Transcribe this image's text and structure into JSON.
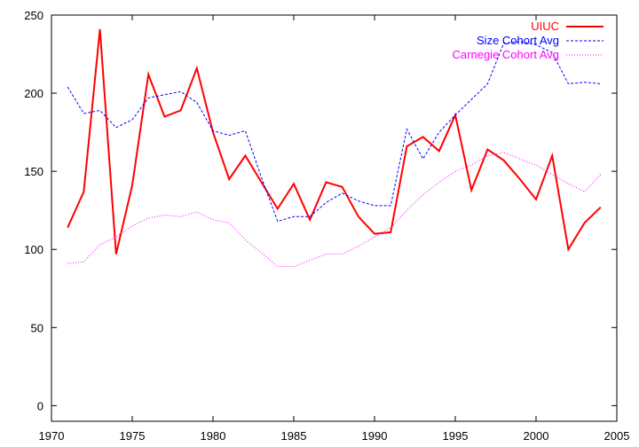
{
  "chart_data": {
    "type": "line",
    "title": "",
    "xlabel": "",
    "ylabel": "",
    "xlim": [
      1970,
      2005
    ],
    "ylim": [
      -10,
      250
    ],
    "xticks": [
      1970,
      1975,
      1980,
      1985,
      1990,
      1995,
      2000,
      2005
    ],
    "yticks": [
      0,
      50,
      100,
      150,
      200,
      250
    ],
    "xtick_labels": [
      "1970",
      "1975",
      "1980",
      "1985",
      "1990",
      "1995",
      "2000",
      "2005"
    ],
    "ytick_labels": [
      "0",
      "50",
      "100",
      "150",
      "200",
      "250"
    ],
    "grid": false,
    "legend_position": "top-right",
    "series": [
      {
        "name": "UIUC",
        "color": "#ff0000",
        "style": "solid",
        "x": [
          1971,
          1972,
          1973,
          1974,
          1975,
          1976,
          1977,
          1978,
          1979,
          1980,
          1981,
          1982,
          1983,
          1984,
          1985,
          1986,
          1987,
          1988,
          1989,
          1990,
          1991,
          1992,
          1993,
          1994,
          1995,
          1996,
          1997,
          1998,
          1999,
          2000,
          2001,
          2002,
          2003,
          2004
        ],
        "values": [
          114,
          137,
          241,
          97,
          141,
          212,
          185,
          189,
          216,
          175,
          145,
          160,
          143,
          126,
          142,
          119,
          143,
          140,
          121,
          110,
          111,
          166,
          172,
          163,
          186,
          138,
          164,
          157,
          145,
          132,
          160,
          100,
          117,
          127
        ]
      },
      {
        "name": "Size Cohort Avg",
        "color": "#0000ff",
        "style": "dashed",
        "x": [
          1971,
          1972,
          1973,
          1974,
          1975,
          1976,
          1977,
          1978,
          1979,
          1980,
          1981,
          1982,
          1983,
          1984,
          1985,
          1986,
          1987,
          1988,
          1989,
          1990,
          1991,
          1992,
          1993,
          1994,
          1995,
          1996,
          1997,
          1998,
          1999,
          2000,
          2001,
          2002,
          2003,
          2004
        ],
        "values": [
          204,
          187,
          189,
          178,
          183,
          197,
          199,
          201,
          194,
          176,
          173,
          176,
          146,
          118,
          121,
          121,
          130,
          136,
          131,
          128,
          128,
          177,
          158,
          175,
          186,
          196,
          206,
          232,
          233,
          231,
          226,
          206,
          207,
          206
        ]
      },
      {
        "name": "Carnegie Cohort Avg",
        "color": "#ff00ff",
        "style": "dotted",
        "x": [
          1971,
          1972,
          1973,
          1974,
          1975,
          1976,
          1977,
          1978,
          1979,
          1980,
          1981,
          1982,
          1983,
          1984,
          1985,
          1986,
          1987,
          1988,
          1989,
          1990,
          1991,
          1992,
          1993,
          1994,
          1995,
          1996,
          1997,
          1998,
          1999,
          2000,
          2001,
          2002,
          2003,
          2004
        ],
        "values": [
          91,
          92,
          103,
          108,
          115,
          120,
          122,
          121,
          124,
          119,
          117,
          106,
          98,
          89,
          89,
          93,
          97,
          97,
          102,
          108,
          114,
          125,
          135,
          143,
          150,
          154,
          160,
          162,
          158,
          154,
          148,
          142,
          137,
          148
        ]
      }
    ]
  }
}
